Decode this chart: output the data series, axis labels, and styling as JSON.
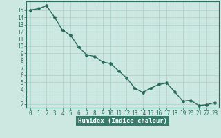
{
  "x": [
    0,
    1,
    2,
    3,
    4,
    5,
    6,
    7,
    8,
    9,
    10,
    11,
    12,
    13,
    14,
    15,
    16,
    17,
    18,
    19,
    20,
    21,
    22,
    23
  ],
  "y": [
    15.0,
    15.2,
    15.6,
    14.0,
    12.2,
    11.5,
    9.9,
    8.8,
    8.6,
    7.8,
    7.6,
    6.6,
    5.6,
    4.2,
    3.6,
    4.2,
    4.7,
    4.9,
    3.7,
    2.4,
    2.5,
    1.8,
    1.9,
    2.2
  ],
  "line_color": "#2a6b5e",
  "marker": "D",
  "marker_size": 2.0,
  "bg_color": "#cce8e0",
  "plot_bg_color": "#cce8e0",
  "grid_color": "#aacfc7",
  "xlabel": "Humidex (Indice chaleur)",
  "xlim": [
    -0.5,
    23.5
  ],
  "ylim": [
    1.5,
    16.2
  ],
  "yticks": [
    2,
    3,
    4,
    5,
    6,
    7,
    8,
    9,
    10,
    11,
    12,
    13,
    14,
    15
  ],
  "xticks": [
    0,
    1,
    2,
    3,
    4,
    5,
    6,
    7,
    8,
    9,
    10,
    11,
    12,
    13,
    14,
    15,
    16,
    17,
    18,
    19,
    20,
    21,
    22,
    23
  ],
  "tick_fontsize": 5.5,
  "label_fontsize": 6.5,
  "line_width": 1.0,
  "spine_color": "#2a6b5e",
  "xlabel_bg": "#3a7a6a"
}
